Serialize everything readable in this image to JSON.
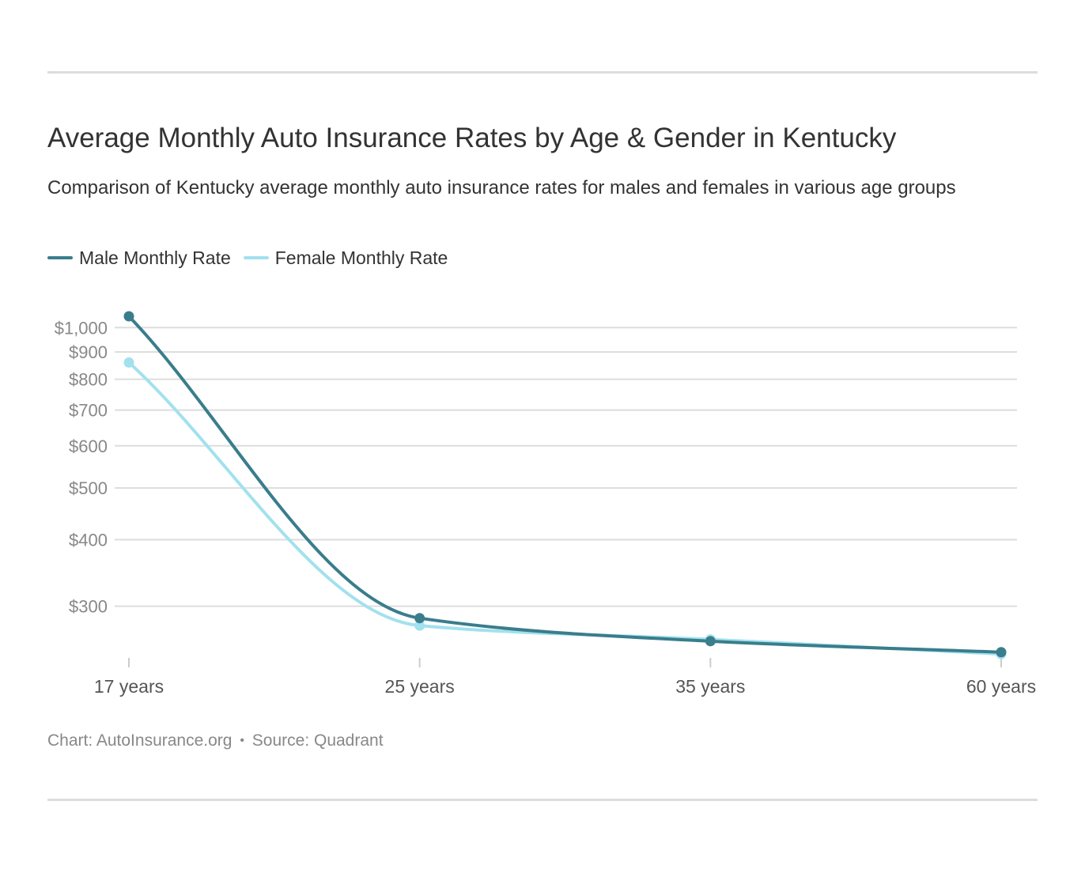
{
  "title": "Average Monthly Auto Insurance Rates by Age & Gender in Kentucky",
  "subtitle": "Comparison of Kentucky average monthly auto insurance rates for males and females in various age groups",
  "footer": {
    "chart_credit": "Chart: AutoInsurance.org",
    "separator": "•",
    "source": "Source: Quadrant"
  },
  "colors": {
    "male": "#3a7d8c",
    "female": "#a2e1ee",
    "grid": "#dddddd",
    "axis_text": "#888888",
    "category_text": "#555555"
  },
  "chart_data": {
    "type": "line",
    "title": "Average Monthly Auto Insurance Rates by Age & Gender in Kentucky",
    "subtitle": "Comparison of Kentucky average monthly auto insurance rates for males and females in various age groups",
    "categories": [
      "17 years",
      "25 years",
      "35 years",
      "60 years"
    ],
    "series": [
      {
        "name": "Male Monthly Rate",
        "values": [
          1050,
          285,
          258,
          246
        ]
      },
      {
        "name": "Female Monthly Rate",
        "values": [
          860,
          276,
          260,
          244
        ]
      }
    ],
    "y_scale": "log",
    "y_ticks": [
      300,
      400,
      500,
      600,
      700,
      800,
      900,
      1000
    ],
    "y_tick_labels": [
      "$300",
      "$400",
      "$500",
      "$600",
      "$700",
      "$800",
      "$900",
      "$1,000"
    ],
    "ylim": [
      240,
      1050
    ],
    "grid": true,
    "legend_position": "top-left",
    "curve": "smooth"
  }
}
